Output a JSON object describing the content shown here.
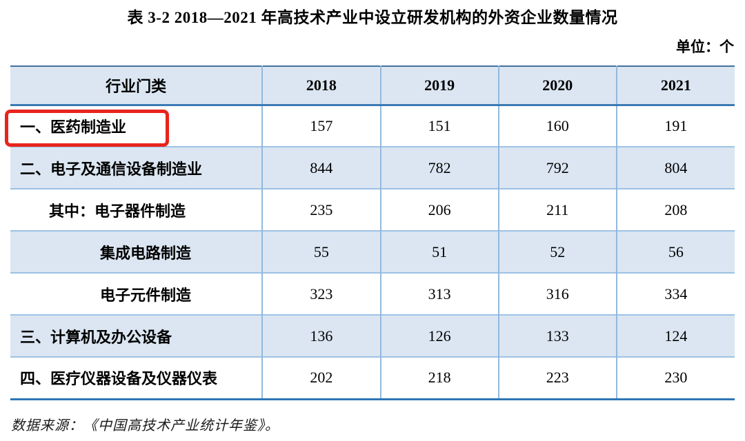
{
  "title": "表 3-2 2018—2021 年高技术产业中设立研发机构的外资企业数量情况",
  "unit_label": "单位：个",
  "source_note": "数据来源：《中国高技术产业统计年鉴》。",
  "colors": {
    "header_bg": "#dbe6f2",
    "row_alt_bg": "#dbe6f2",
    "border_light_blue": "#9cc2e5",
    "border_dark_blue": "#2e75b6",
    "highlight_red": "#e8241c",
    "text": "#000000"
  },
  "table": {
    "columns": [
      "行业门类",
      "2018",
      "2019",
      "2020",
      "2021"
    ],
    "rows": [
      {
        "label": "一、医药制造业",
        "values": [
          "157",
          "151",
          "160",
          "191"
        ],
        "highlighted": true
      },
      {
        "label": "二、电子及通信设备制造业",
        "values": [
          "844",
          "782",
          "792",
          "804"
        ],
        "highlighted": false
      },
      {
        "label": "其中：电子器件制造",
        "values": [
          "235",
          "206",
          "211",
          "208"
        ],
        "highlighted": false
      },
      {
        "label": "集成电路制造",
        "values": [
          "55",
          "51",
          "52",
          "56"
        ],
        "highlighted": false
      },
      {
        "label": "电子元件制造",
        "values": [
          "323",
          "313",
          "316",
          "334"
        ],
        "highlighted": false
      },
      {
        "label": "三、计算机及办公设备",
        "values": [
          "136",
          "126",
          "133",
          "124"
        ],
        "highlighted": false
      },
      {
        "label": "四、医疗仪器设备及仪器仪表",
        "values": [
          "202",
          "218",
          "223",
          "230"
        ],
        "highlighted": false
      }
    ]
  },
  "chart_data": {
    "type": "table",
    "title": "表 3-2 2018—2021 年高技术产业中设立研发机构的外资企业数量情况",
    "unit": "个",
    "categories": [
      "2018",
      "2019",
      "2020",
      "2021"
    ],
    "series": [
      {
        "name": "一、医药制造业",
        "values": [
          157,
          151,
          160,
          191
        ]
      },
      {
        "name": "二、电子及通信设备制造业",
        "values": [
          844,
          782,
          792,
          804
        ]
      },
      {
        "name": "其中：电子器件制造",
        "values": [
          235,
          206,
          211,
          208
        ]
      },
      {
        "name": "集成电路制造",
        "values": [
          55,
          51,
          52,
          56
        ]
      },
      {
        "name": "电子元件制造",
        "values": [
          323,
          313,
          316,
          334
        ]
      },
      {
        "name": "三、计算机及办公设备",
        "values": [
          136,
          126,
          133,
          124
        ]
      },
      {
        "name": "四、医疗仪器设备及仪器仪表",
        "values": [
          202,
          218,
          223,
          230
        ]
      }
    ],
    "source": "数据来源：《中国高技术产业统计年鉴》。"
  }
}
